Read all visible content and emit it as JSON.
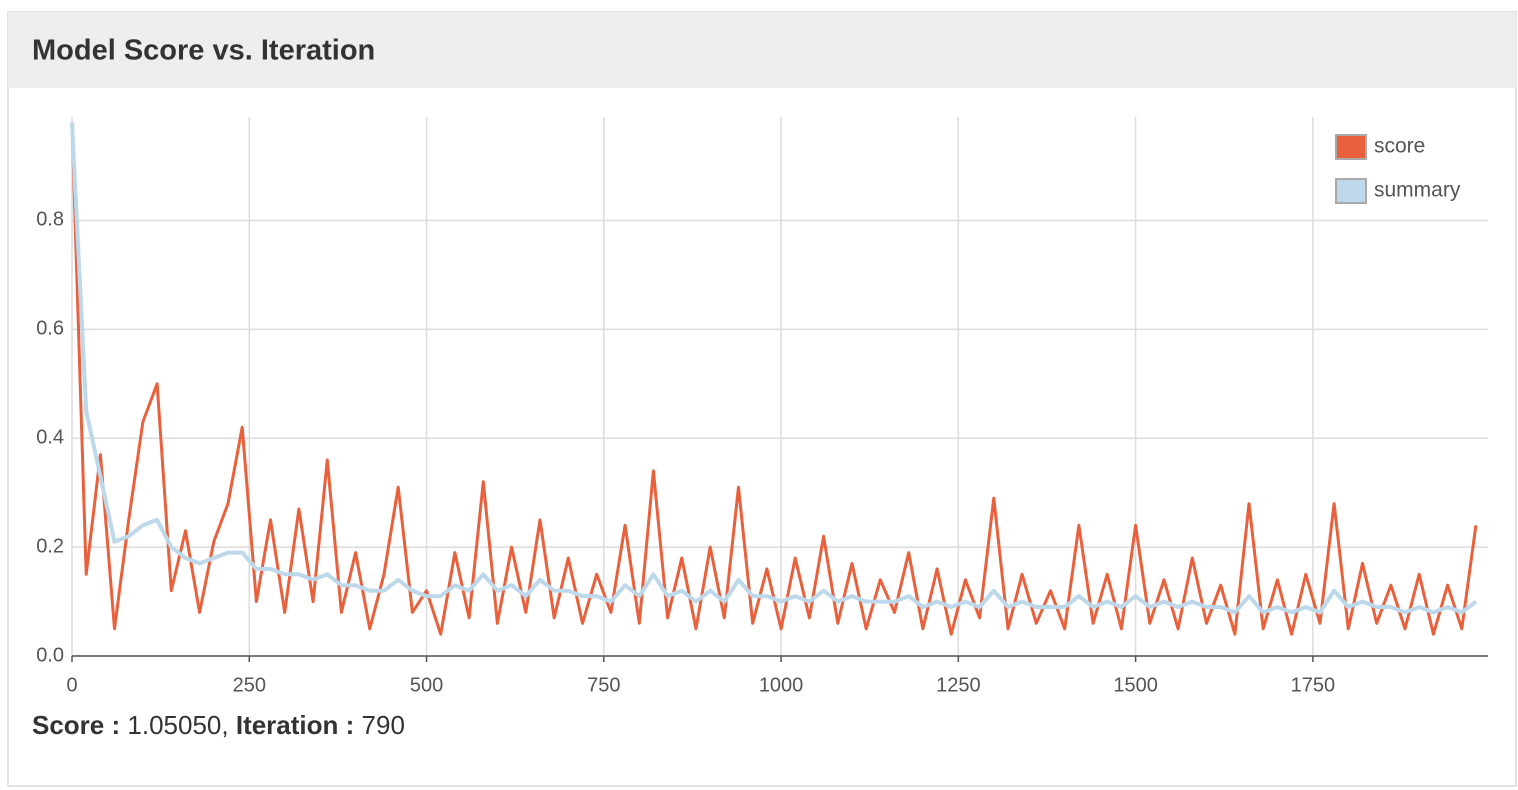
{
  "chart_data": {
    "type": "line",
    "title": "Model Score vs. Iteration",
    "x": [
      0,
      20,
      40,
      60,
      80,
      100,
      120,
      140,
      160,
      180,
      200,
      220,
      240,
      260,
      280,
      300,
      320,
      340,
      360,
      380,
      400,
      420,
      440,
      460,
      480,
      500,
      520,
      540,
      560,
      580,
      600,
      620,
      640,
      660,
      680,
      700,
      720,
      740,
      760,
      780,
      800,
      820,
      840,
      860,
      880,
      900,
      920,
      940,
      960,
      980,
      1000,
      1020,
      1040,
      1060,
      1080,
      1100,
      1120,
      1140,
      1160,
      1180,
      1200,
      1220,
      1240,
      1260,
      1280,
      1300,
      1320,
      1340,
      1360,
      1380,
      1400,
      1420,
      1440,
      1460,
      1480,
      1500,
      1520,
      1540,
      1560,
      1580,
      1600,
      1620,
      1640,
      1660,
      1680,
      1700,
      1720,
      1740,
      1760,
      1780,
      1800,
      1820,
      1840,
      1860,
      1880,
      1900,
      1920,
      1940,
      1960,
      1980
    ],
    "series": [
      {
        "name": "score",
        "color": "#e8603c",
        "values": [
          0.98,
          0.15,
          0.37,
          0.05,
          0.25,
          0.43,
          0.5,
          0.12,
          0.23,
          0.08,
          0.21,
          0.28,
          0.42,
          0.1,
          0.25,
          0.08,
          0.27,
          0.1,
          0.36,
          0.08,
          0.19,
          0.05,
          0.15,
          0.31,
          0.08,
          0.12,
          0.04,
          0.19,
          0.07,
          0.32,
          0.06,
          0.2,
          0.08,
          0.25,
          0.07,
          0.18,
          0.06,
          0.15,
          0.08,
          0.24,
          0.06,
          0.34,
          0.07,
          0.18,
          0.05,
          0.2,
          0.07,
          0.31,
          0.06,
          0.16,
          0.05,
          0.18,
          0.07,
          0.22,
          0.06,
          0.17,
          0.05,
          0.14,
          0.08,
          0.19,
          0.05,
          0.16,
          0.04,
          0.14,
          0.07,
          0.29,
          0.05,
          0.15,
          0.06,
          0.12,
          0.05,
          0.24,
          0.06,
          0.15,
          0.05,
          0.24,
          0.06,
          0.14,
          0.05,
          0.18,
          0.06,
          0.13,
          0.04,
          0.28,
          0.05,
          0.14,
          0.04,
          0.15,
          0.06,
          0.28,
          0.05,
          0.17,
          0.06,
          0.13,
          0.05,
          0.15,
          0.04,
          0.13,
          0.05,
          0.24
        ]
      },
      {
        "name": "summary",
        "color": "#bcd8ea",
        "values": [
          0.98,
          0.45,
          0.33,
          0.21,
          0.22,
          0.24,
          0.25,
          0.2,
          0.18,
          0.17,
          0.18,
          0.19,
          0.19,
          0.16,
          0.16,
          0.15,
          0.15,
          0.14,
          0.15,
          0.13,
          0.13,
          0.12,
          0.12,
          0.14,
          0.12,
          0.11,
          0.11,
          0.13,
          0.12,
          0.15,
          0.12,
          0.13,
          0.11,
          0.14,
          0.12,
          0.12,
          0.11,
          0.11,
          0.1,
          0.13,
          0.11,
          0.15,
          0.11,
          0.12,
          0.1,
          0.12,
          0.1,
          0.14,
          0.11,
          0.11,
          0.1,
          0.11,
          0.1,
          0.12,
          0.1,
          0.11,
          0.1,
          0.1,
          0.1,
          0.11,
          0.09,
          0.1,
          0.09,
          0.1,
          0.09,
          0.12,
          0.09,
          0.1,
          0.09,
          0.09,
          0.09,
          0.11,
          0.09,
          0.1,
          0.09,
          0.11,
          0.09,
          0.1,
          0.09,
          0.1,
          0.09,
          0.09,
          0.08,
          0.11,
          0.08,
          0.09,
          0.08,
          0.09,
          0.08,
          0.12,
          0.09,
          0.1,
          0.09,
          0.09,
          0.08,
          0.09,
          0.08,
          0.09,
          0.08,
          0.1
        ]
      }
    ],
    "xlim": [
      0,
      1997
    ],
    "ylim": [
      0,
      0.99
    ],
    "xticks": [
      0,
      250,
      500,
      750,
      1000,
      1250,
      1500,
      1750
    ],
    "yticks": [
      {
        "value": 0,
        "label": "0.0"
      },
      0.2,
      0.4,
      0.6,
      0.8
    ],
    "grid": true,
    "legend": "top-right"
  },
  "status": {
    "score_label": "Score :",
    "score": "1.05050,",
    "iteration_label": "Iteration :",
    "iteration": "790"
  }
}
